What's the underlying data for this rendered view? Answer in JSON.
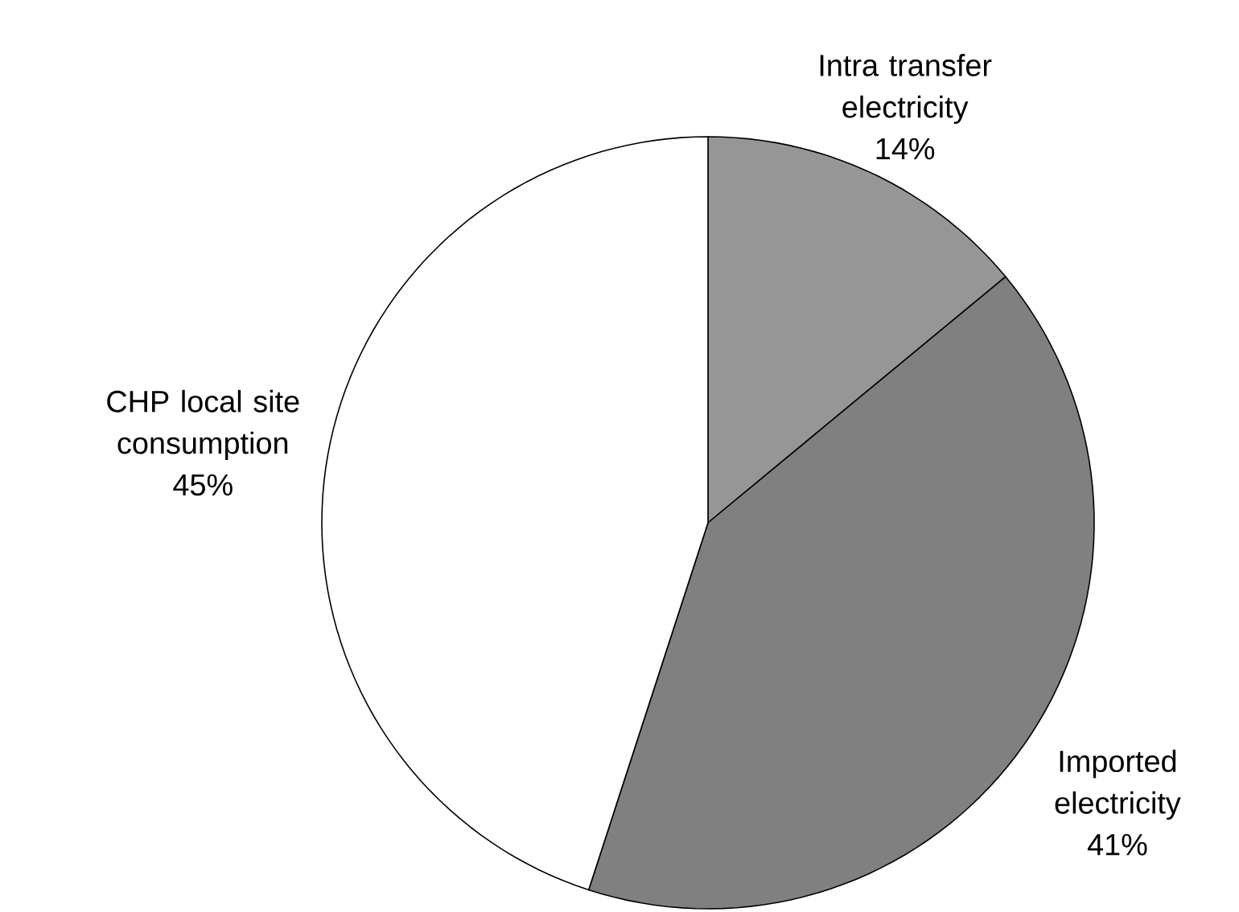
{
  "chart_data": {
    "type": "pie",
    "categories": [
      "Intra transfer electricity",
      "Imported electricity",
      "CHP local site consumption"
    ],
    "values": [
      14,
      41,
      45
    ],
    "colors": [
      "#969696",
      "#808080",
      "#ffffff"
    ],
    "value_labels": [
      "14%",
      "41%",
      "45%"
    ]
  }
}
